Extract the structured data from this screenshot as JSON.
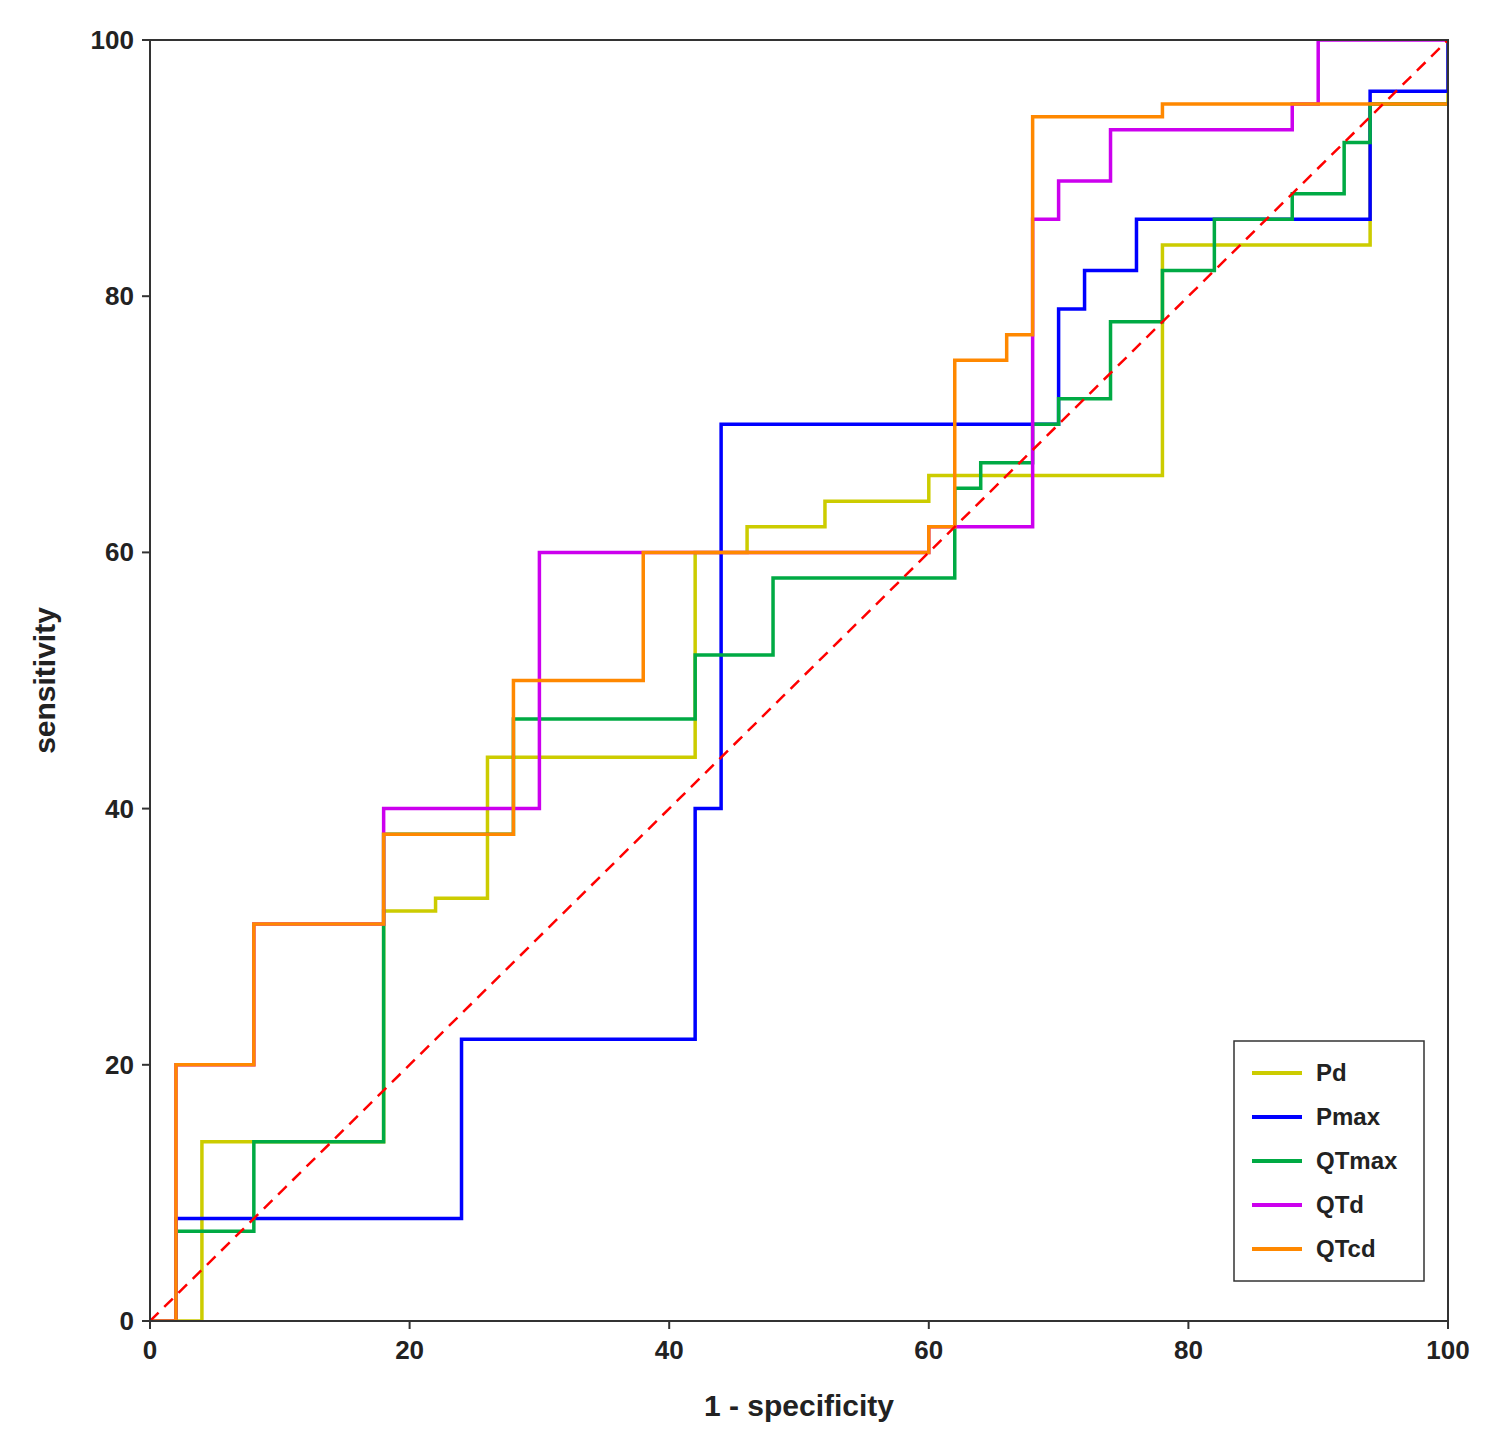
{
  "chart_data": {
    "type": "line",
    "title": "",
    "xlabel": "1 - specificity",
    "ylabel": "sensitivity",
    "xlim": [
      0,
      100
    ],
    "ylim": [
      0,
      100
    ],
    "xticks": [
      0,
      20,
      40,
      60,
      80,
      100
    ],
    "yticks": [
      0,
      20,
      40,
      60,
      80,
      100
    ],
    "grid": false,
    "legend": "lower right",
    "series": [
      {
        "name": "Pd",
        "color": "#cccc00",
        "type": "step",
        "line_style": "solid",
        "x": [
          0,
          2,
          4,
          8,
          18,
          22,
          26,
          34,
          42,
          46,
          52,
          60,
          78,
          94,
          100
        ],
        "values": [
          0,
          0,
          14,
          14,
          32,
          33,
          44,
          44,
          60,
          62,
          64,
          66,
          84,
          95,
          100
        ]
      },
      {
        "name": "Pmax",
        "color": "#0000ff",
        "type": "step",
        "line_style": "solid",
        "x": [
          0,
          2,
          14,
          24,
          42,
          44,
          70,
          72,
          76,
          90,
          94,
          100
        ],
        "values": [
          0,
          8,
          8,
          22,
          40,
          70,
          79,
          82,
          86,
          86,
          96,
          100
        ]
      },
      {
        "name": "QTmax",
        "color": "#00aa44",
        "type": "step",
        "line_style": "solid",
        "x": [
          0,
          2,
          8,
          18,
          28,
          42,
          48,
          62,
          64,
          68,
          70,
          74,
          78,
          82,
          88,
          92,
          94,
          100
        ],
        "values": [
          0,
          7,
          14,
          38,
          47,
          52,
          58,
          65,
          67,
          70,
          72,
          78,
          82,
          86,
          88,
          92,
          95,
          95
        ]
      },
      {
        "name": "QTd",
        "color": "#cc00ee",
        "type": "step",
        "line_style": "solid",
        "x": [
          0,
          2,
          8,
          18,
          30,
          60,
          68,
          70,
          74,
          88,
          90,
          100
        ],
        "values": [
          0,
          20,
          31,
          40,
          60,
          62,
          86,
          89,
          93,
          95,
          100,
          100
        ]
      },
      {
        "name": "QTcd",
        "color": "#ff8800",
        "type": "step",
        "line_style": "solid",
        "x": [
          0,
          2,
          8,
          18,
          28,
          38,
          60,
          62,
          66,
          68,
          78,
          100
        ],
        "values": [
          0,
          20,
          31,
          38,
          50,
          60,
          62,
          75,
          77,
          94,
          95,
          95
        ]
      },
      {
        "color": "#ff0000",
        "type": "line",
        "line_style": "dashed",
        "x": [
          0,
          100
        ],
        "values": [
          0,
          100
        ]
      }
    ]
  }
}
